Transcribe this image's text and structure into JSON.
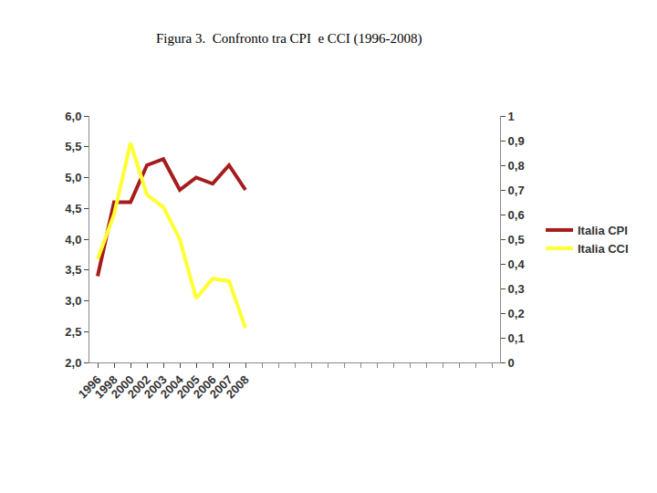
{
  "chart_data": {
    "type": "line",
    "title": "Figura 3.  Confronto tra CPI  e CCI (1996-2008)",
    "categories": [
      "1996",
      "1998",
      "2000",
      "2002",
      "2003",
      "2004",
      "2005",
      "2006",
      "2007",
      "2008",
      null,
      null,
      null,
      null,
      null,
      null,
      null,
      null,
      null,
      null,
      null,
      null,
      null,
      null,
      null
    ],
    "series": [
      {
        "name": "Italia CPI",
        "color": "#a61c1c",
        "values": [
          3.4,
          4.6,
          4.6,
          5.2,
          5.3,
          4.8,
          5.0,
          4.9,
          5.2,
          4.8,
          null,
          null,
          null,
          null,
          null,
          null,
          null,
          null,
          null,
          null,
          null,
          null,
          null,
          null,
          null
        ]
      },
      {
        "name": "Italia CCI",
        "color": "#ffff33",
        "axis": "y2",
        "values": [
          0.42,
          0.6,
          0.89,
          0.68,
          0.63,
          0.5,
          0.26,
          0.34,
          0.33,
          0.14,
          null,
          null,
          null,
          null,
          null,
          null,
          null,
          null,
          null,
          null,
          null,
          null,
          null,
          null,
          null
        ]
      }
    ],
    "ylim": [
      2,
      6
    ],
    "yticks": [
      {
        "value": 2,
        "label": "2,0"
      },
      {
        "value": 2.5,
        "label": "2,5"
      },
      {
        "value": 3,
        "label": "3,0"
      },
      {
        "value": 3.5,
        "label": "3,5"
      },
      {
        "value": 4,
        "label": "4,0"
      },
      {
        "value": 4.5,
        "label": "4,5"
      },
      {
        "value": 5,
        "label": "5,0"
      },
      {
        "value": 5.5,
        "label": "5,5"
      },
      {
        "value": 6,
        "label": "6,0"
      }
    ],
    "y2lim": [
      0,
      1
    ],
    "y2ticks": [
      0,
      {
        "value": 0.1,
        "label": "0,1"
      },
      {
        "value": 0.2,
        "label": "0,2"
      },
      {
        "value": 0.3,
        "label": "0,3"
      },
      {
        "value": 0.4,
        "label": "0,4"
      },
      {
        "value": 0.5,
        "label": "0,5"
      },
      {
        "value": 0.6,
        "label": "0,6"
      },
      {
        "value": 0.7,
        "label": "0,7"
      },
      {
        "value": 0.8,
        "label": "0,8"
      },
      {
        "value": 0.9,
        "label": "0,9"
      },
      1
    ],
    "legend": "right",
    "grid": false
  }
}
